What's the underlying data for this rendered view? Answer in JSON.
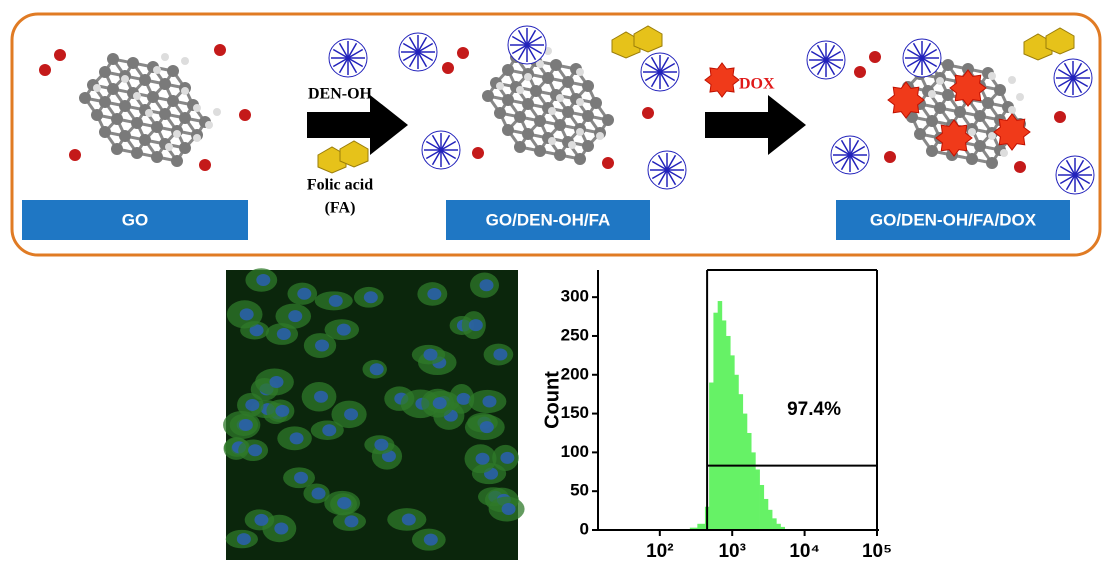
{
  "diagram": {
    "steps": [
      {
        "label": "GO"
      },
      {
        "label": "GO/DEN-OH/FA"
      },
      {
        "label": "GO/DEN-OH/FA/DOX"
      }
    ],
    "reagents_1": [
      "DEN-OH",
      "Folic acid",
      "(FA)"
    ],
    "reagent_2": "DOX"
  },
  "chart_data": {
    "type": "histogram",
    "ylabel": "Count",
    "bins": [
      260,
      330,
      420,
      480,
      550,
      630,
      720,
      820,
      940,
      1070,
      1220,
      1400,
      1600,
      1830,
      2090,
      2390,
      2730,
      3120,
      3560,
      4070,
      4650,
      5310,
      6070
    ],
    "counts": [
      3,
      8,
      30,
      190,
      280,
      295,
      270,
      250,
      225,
      200,
      175,
      150,
      125,
      100,
      78,
      58,
      40,
      26,
      15,
      8,
      4,
      1
    ],
    "color": "#66f266",
    "xscale": "log",
    "xlim": [
      14,
      100000
    ],
    "xticks": [
      {
        "value": 100,
        "label": "10²"
      },
      {
        "value": 1000,
        "label": "10³"
      },
      {
        "value": 10000,
        "label": "10⁴"
      },
      {
        "value": 100000,
        "label": "10⁵"
      }
    ],
    "ylim": [
      0,
      335
    ],
    "yticks": [
      0,
      50,
      100,
      150,
      200,
      250,
      300
    ],
    "gate": {
      "x": [
        450,
        100000
      ],
      "y": 83
    },
    "annotation": "97.4%"
  }
}
